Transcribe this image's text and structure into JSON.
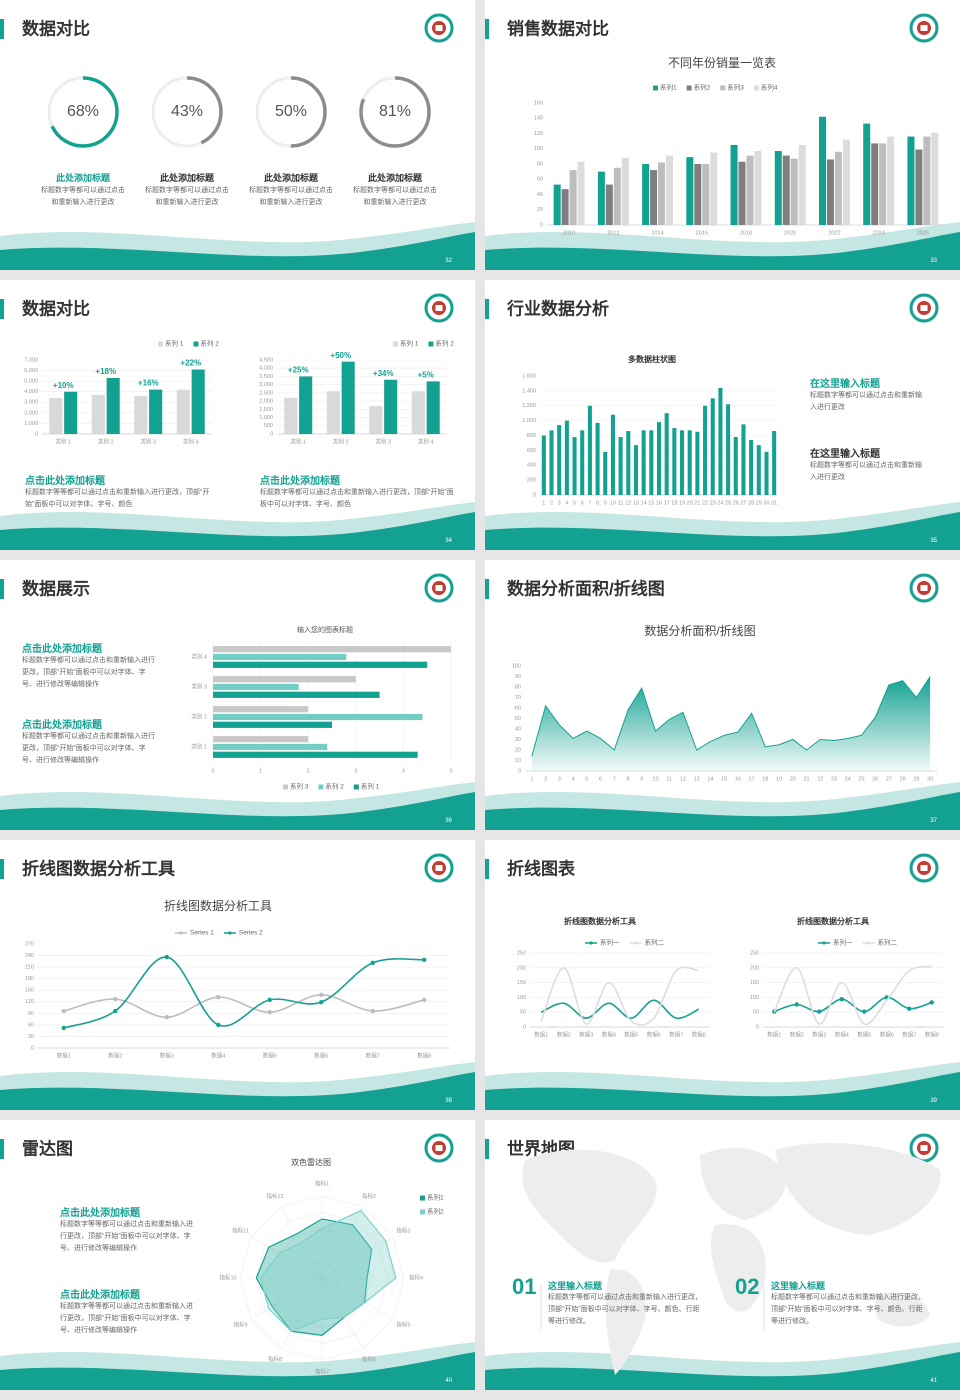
{
  "theme_color": "#13a192",
  "slides": [
    {
      "type": "rings",
      "title": "数据对比",
      "page": 32,
      "items": [
        {
          "value": 68,
          "value_label": "68%",
          "color": "#13a192",
          "heading": "此处添加标题",
          "heading_color": "#13a192",
          "text": "标题数字等都可以通过点击和重新输入进行更改"
        },
        {
          "value": 43,
          "value_label": "43%",
          "color": "#8c8c8c",
          "heading": "此处添加标题",
          "heading_color": "#333333",
          "text": "标题数字等都可以通过点击和重新输入进行更改"
        },
        {
          "value": 50,
          "value_label": "50%",
          "color": "#8c8c8c",
          "heading": "此处添加标题",
          "heading_color": "#333333",
          "text": "标题数字等都可以通过点击和重新输入进行更改"
        },
        {
          "value": 81,
          "value_label": "81%",
          "color": "#8c8c8c",
          "heading": "此处添加标题",
          "heading_color": "#333333",
          "text": "标题数字等都可以通过点击和重新输入进行更改"
        }
      ]
    },
    {
      "type": "bar",
      "title": "销售数据对比",
      "page": 33,
      "chart": {
        "title": "不同年份销量一览表",
        "categories": [
          "2010",
          "2012",
          "2014",
          "2016",
          "2018",
          "2020",
          "2022",
          "2024",
          "2026"
        ],
        "series": [
          {
            "name": "系列1",
            "color": "#13a192",
            "values": [
              53,
              70,
              80,
              89,
              105,
              97,
              142,
              133,
              116
            ]
          },
          {
            "name": "系列2",
            "color": "#7f7f7f",
            "values": [
              47,
              53,
              72,
              80,
              83,
              91,
              86,
              107,
              99
            ]
          },
          {
            "name": "系列3",
            "color": "#bdbdbd",
            "values": [
              72,
              75,
              82,
              80,
              91,
              87,
              96,
              107,
              116
            ]
          },
          {
            "name": "系列4",
            "color": "#dcdcdc",
            "values": [
              83,
              88,
              91,
              95,
              97,
              105,
              112,
              116,
              121
            ]
          }
        ],
        "ylim": [
          0,
          160
        ],
        "yticks": [
          0,
          20,
          40,
          60,
          80,
          100,
          120,
          140,
          160
        ],
        "grid": false
      }
    },
    {
      "type": "bars2",
      "title": "数据对比",
      "page": 34,
      "charts": [
        {
          "categories": [
            "类别 1",
            "类别 2",
            "类别 3",
            "类别 4"
          ],
          "series": [
            {
              "name": "系列 1",
              "color": "#d9d9d9",
              "values": [
                3400,
                3700,
                3600,
                4200
              ]
            },
            {
              "name": "系列 2",
              "color": "#13a192",
              "values": [
                4000,
                5300,
                4200,
                6100
              ]
            }
          ],
          "annotations": [
            "+10%",
            "+18%",
            "+16%",
            "+22%"
          ],
          "ylim": [
            0,
            7000
          ],
          "yticks": [
            0,
            {
              "value": 1000,
              "label": "1,000"
            },
            {
              "value": 2000,
              "label": "2,000"
            },
            {
              "value": 3000,
              "label": "3,000"
            },
            {
              "value": 4000,
              "label": "4,000"
            },
            {
              "value": 5000,
              "label": "5,000"
            },
            {
              "value": 6000,
              "label": "6,000"
            },
            {
              "value": 7000,
              "label": "7,000"
            }
          ],
          "grid": true
        },
        {
          "categories": [
            "类别 1",
            "类别 2",
            "类别 3",
            "类别 4"
          ],
          "series": [
            {
              "name": "系列 1",
              "color": "#d9d9d9",
              "values": [
                2200,
                2600,
                1700,
                2600
              ]
            },
            {
              "name": "系列 2",
              "color": "#13a192",
              "values": [
                3500,
                4400,
                3300,
                3200
              ]
            }
          ],
          "annotations": [
            "+25%",
            "+50%",
            "+34%",
            "+5%"
          ],
          "ylim": [
            0,
            4500
          ],
          "yticks": [
            0,
            500,
            {
              "value": 1000,
              "label": "1,000"
            },
            {
              "value": 1500,
              "label": "1,500"
            },
            {
              "value": 2000,
              "label": "2,000"
            },
            {
              "value": 2500,
              "label": "2,500"
            },
            {
              "value": 3000,
              "label": "3,000"
            },
            {
              "value": 3500,
              "label": "3,500"
            },
            {
              "value": 4000,
              "label": "4,000"
            },
            {
              "value": 4500,
              "label": "4,500"
            }
          ],
          "grid": true
        }
      ],
      "blocks": [
        {
          "heading": "点击此处添加标题",
          "text": "标题数字等等都可以通过点击和重新输入进行更改，顶部“开始”面板中可以对字体、字号、颜色"
        },
        {
          "heading": "点击此处添加标题",
          "text": "标题数字等都可以通过点击和重新输入进行更改，顶部“开始”面板中可以对字体、字号、颜色"
        }
      ]
    },
    {
      "type": "column",
      "title": "行业数据分析",
      "page": 35,
      "chart": {
        "title": "多数据柱状图",
        "categories": [
          1,
          2,
          3,
          4,
          5,
          6,
          7,
          8,
          9,
          10,
          11,
          12,
          13,
          14,
          15,
          16,
          17,
          18,
          19,
          20,
          21,
          22,
          23,
          24,
          25,
          26,
          27,
          28,
          29,
          30,
          31
        ],
        "values": [
          800,
          870,
          940,
          1000,
          780,
          870,
          1200,
          970,
          580,
          1080,
          780,
          860,
          670,
          870,
          870,
          980,
          1100,
          900,
          870,
          870,
          850,
          1200,
          1300,
          1440,
          1220,
          780,
          950,
          740,
          670,
          580,
          860
        ],
        "color": "#13a192",
        "ylim": [
          0,
          1600
        ],
        "yticks": [
          0,
          200,
          400,
          600,
          800,
          {
            "value": 1000,
            "label": "1,000"
          },
          {
            "value": 1200,
            "label": "1,200"
          },
          {
            "value": 1400,
            "label": "1,400"
          },
          {
            "value": 1600,
            "label": "1,600"
          }
        ],
        "grid": true
      },
      "blocks": [
        {
          "heading": "在这里输入标题",
          "heading_color": "#13a192",
          "text": "标题数字等都可以通过点击和重新输入进行更改"
        },
        {
          "heading": "在这里输入标题",
          "heading_color": "#333333",
          "text": "标题数字等都可以通过点击和重新输入进行更改"
        }
      ]
    },
    {
      "type": "hbar",
      "title": "数据展示",
      "page": 36,
      "chart": {
        "title": "输入您的图表标题",
        "categories": [
          "类别 1",
          "类别 2",
          "类别 3",
          "类别 4"
        ],
        "series": [
          {
            "name": "系列 1",
            "color": "#13a192",
            "values": [
              4.3,
              2.5,
              3.5,
              4.5
            ]
          },
          {
            "name": "系列 2",
            "color": "#72cdc4",
            "values": [
              2.4,
              4.4,
              1.8,
              2.8
            ]
          },
          {
            "name": "系列 3",
            "color": "#c8c8c8",
            "values": [
              2,
              2,
              3,
              5
            ]
          }
        ],
        "xlim": [
          0,
          5
        ],
        "xticks": [
          0,
          1,
          2,
          3,
          4,
          5
        ],
        "grid": true
      },
      "blocks": [
        {
          "heading": "点击此处添加标题",
          "text": "标题数字等都可以通过点击和重新输入进行更改，顶部“开始”面板中可以对字体、字号、进行修改等编辑操作"
        },
        {
          "heading": "点击此处添加标题",
          "text": "标题数字等都可以通过点击和重新输入进行更改，顶部“开始”面板中可以对字体、字号、进行修改等编辑操作"
        }
      ]
    },
    {
      "type": "area",
      "title": "数据分析面积/折线图",
      "page": 37,
      "chart": {
        "title": "数据分析面积/折线图",
        "categories": [
          1,
          2,
          3,
          4,
          5,
          6,
          7,
          8,
          9,
          10,
          11,
          12,
          13,
          14,
          15,
          16,
          17,
          18,
          19,
          20,
          21,
          22,
          23,
          24,
          25,
          26,
          27,
          28,
          29,
          30
        ],
        "values": [
          14,
          62,
          44,
          31,
          38,
          31,
          20,
          58,
          79,
          38,
          49,
          56,
          20,
          28,
          34,
          37,
          55,
          23,
          25,
          30,
          20,
          30,
          29,
          31,
          34,
          51,
          82,
          86,
          70,
          90
        ],
        "color": "#13a192",
        "ylim": [
          0,
          100
        ],
        "yticks": [
          0,
          10,
          20,
          30,
          40,
          50,
          60,
          70,
          80,
          90,
          100
        ],
        "grid": false
      }
    },
    {
      "type": "line",
      "title": "折线图数据分析工具",
      "page": 38,
      "chart": {
        "title": "折线图数据分析工具",
        "categories": [
          "数据1",
          "数据2",
          "数据3",
          "数据4",
          "数据5",
          "数据6",
          "数据7",
          "数据8"
        ],
        "series": [
          {
            "name": "Series 1",
            "color": "#bdbdbd",
            "marker": true,
            "values": [
              96,
              127,
              80,
              132,
              93,
              138,
              96,
              125
            ]
          },
          {
            "name": "Series 2",
            "color": "#13a192",
            "marker": true,
            "values": [
              52,
              96,
              236,
              60,
              125,
              119,
              221,
              229
            ]
          }
        ],
        "ylim": [
          0,
          270
        ],
        "yticks": [
          0,
          30,
          60,
          90,
          120,
          150,
          180,
          210,
          240,
          270
        ],
        "grid": true
      }
    },
    {
      "type": "lines2",
      "title": "折线图表",
      "page": 39,
      "charts": [
        {
          "title": "折线图数据分析工具",
          "categories": [
            "数据1",
            "数据2",
            "数据3",
            "数据4",
            "数据5",
            "数据6",
            "数据7",
            "数据8"
          ],
          "series": [
            {
              "name": "系列一",
              "color": "#13a192",
              "marker": false,
              "values": [
                50,
                80,
                30,
                80,
                30,
                90,
                30,
                60
              ]
            },
            {
              "name": "系列二",
              "color": "#dddddd",
              "marker": false,
              "values": [
                20,
                200,
                10,
                150,
                20,
                30,
                190,
                190
              ]
            }
          ],
          "ylim": [
            0,
            250
          ],
          "yticks": [
            0,
            50,
            100,
            150,
            200,
            250
          ],
          "grid": true
        },
        {
          "title": "折线图数据分析工具",
          "categories": [
            "数据1",
            "数据2",
            "数据3",
            "数据4",
            "数据5",
            "数据6",
            "数据7",
            "数据8"
          ],
          "series": [
            {
              "name": "系列一",
              "color": "#13a192",
              "marker": true,
              "values": [
                52,
                76,
                52,
                94,
                52,
                100,
                62,
                83
              ]
            },
            {
              "name": "系列二",
              "color": "#dddddd",
              "marker": false,
              "values": [
                50,
                200,
                10,
                150,
                10,
                90,
                190,
                205
              ]
            }
          ],
          "ylim": [
            0,
            250
          ],
          "yticks": [
            0,
            50,
            100,
            150,
            200,
            250
          ],
          "grid": true
        }
      ]
    },
    {
      "type": "radar",
      "title": "雷达图",
      "page": 40,
      "chart": {
        "title": "双色雷达图",
        "categories": [
          "指标1",
          "指标2",
          "指标3",
          "指标4",
          "指标5",
          "指标6",
          "指标7",
          "指标8",
          "指标9",
          "指标10",
          "指标11",
          "指标12"
        ],
        "series": [
          {
            "name": "系列1",
            "color": "#13a192",
            "values": [
              72,
              75,
              70,
              55,
              60,
              55,
              70,
              75,
              70,
              80,
              75,
              62
            ]
          },
          {
            "name": "系列2",
            "color": "#7fd0c8",
            "values": [
              60,
              95,
              90,
              90,
              60,
              55,
              50,
              75,
              75,
              75,
              60,
              50
            ]
          }
        ],
        "ylim": [
          0,
          100
        ],
        "yticks": [
          20,
          40,
          60,
          80,
          100
        ],
        "grid": true
      },
      "blocks": [
        {
          "heading": "点击此处添加标题",
          "text": "标题数字等等都可以通过点击和重新输入进行更改，顶部“开始”面板中可以对字体、字号、进行修改等编辑操作"
        },
        {
          "heading": "点击此处添加标题",
          "text": "标题数字等等都可以通过点击和重新输入进行更改，顶部“开始”面板中可以对字体、字号、进行修改等编辑操作"
        }
      ]
    },
    {
      "type": "map",
      "title": "世界地图",
      "page": 41,
      "items": [
        {
          "number": "01",
          "heading": "这里输入标题",
          "text": "标题数字等都可以通过点击和重新输入进行更改，顶部“开始”面板中可以对字体、字号、颜色、行距等进行修改。"
        },
        {
          "number": "02",
          "heading": "这里输入标题",
          "text": "标题数字等都可以通过点击和重新输入进行更改，顶部“开始”面板中可以对字体、字号、颜色、行距等进行修改。"
        }
      ]
    }
  ]
}
